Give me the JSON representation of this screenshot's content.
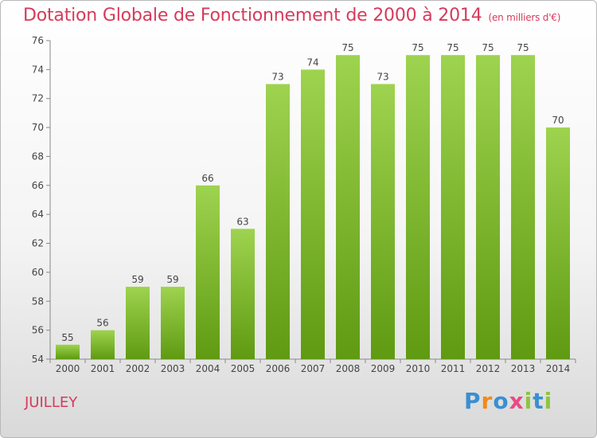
{
  "chart_data": {
    "type": "bar",
    "title": "Dotation Globale de Fonctionnement de 2000 à 2014",
    "subtitle": "(en milliers d'€)",
    "categories": [
      "2000",
      "2001",
      "2002",
      "2003",
      "2004",
      "2005",
      "2006",
      "2007",
      "2008",
      "2009",
      "2010",
      "2011",
      "2012",
      "2013",
      "2014"
    ],
    "values": [
      55,
      56,
      59,
      59,
      66,
      63,
      73,
      74,
      75,
      73,
      75,
      75,
      75,
      75,
      70
    ],
    "ylim": [
      54,
      76
    ],
    "yticks": [
      54,
      56,
      58,
      60,
      62,
      64,
      66,
      68,
      70,
      72,
      74,
      76
    ],
    "xlabel": "",
    "ylabel": "",
    "grid": false
  },
  "footer": {
    "place": "JUILLEY",
    "brand_letters": [
      "P",
      "r",
      "o",
      "x",
      "i",
      "t",
      "i"
    ]
  },
  "colors": {
    "title": "#d63a5c",
    "bar_top": "#9ed34f",
    "bar_bottom": "#5f9a12",
    "axis": "#888888"
  }
}
